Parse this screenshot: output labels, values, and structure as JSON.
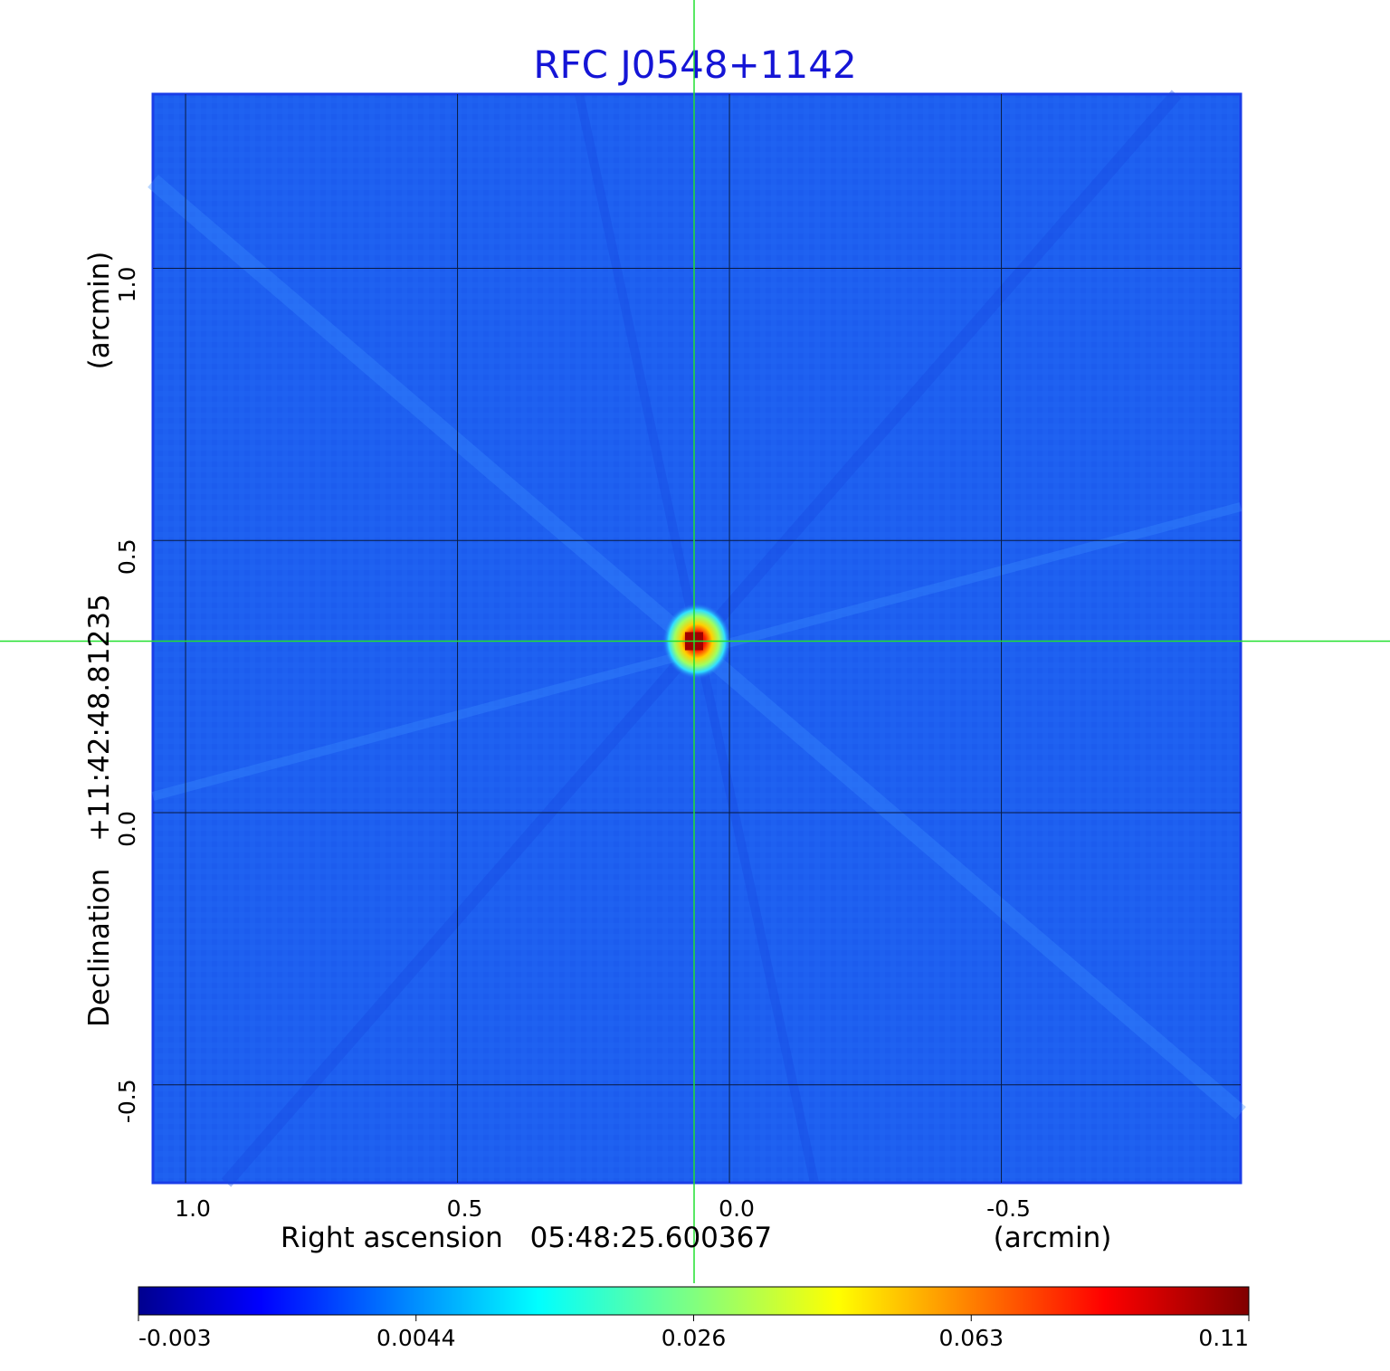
{
  "chart_data": {
    "type": "heatmap",
    "title": "RFC J0548+1142",
    "xlabel_prefix": "Right ascension",
    "x_center": "05:48:25.600367",
    "x_unit": "(arcmin)",
    "ylabel_prefix": "Declination",
    "y_center": "+11:42:48.81235",
    "y_unit": "(arcmin)",
    "xlim": [
      1.06,
      -0.94
    ],
    "ylim": [
      -0.68,
      1.32
    ],
    "x_ticks": [
      1.0,
      0.5,
      0.0,
      -0.5
    ],
    "x_tick_labels": [
      "1.0",
      "0.5",
      "0.0",
      "-0.5"
    ],
    "y_ticks": [
      1.0,
      0.5,
      0.0,
      -0.5
    ],
    "y_tick_labels": [
      "1.0",
      "0.5",
      "0.0",
      "-0.5"
    ],
    "grid": true,
    "crosshair": {
      "x": 0.065,
      "y": 0.315
    },
    "source_peak": {
      "x": 0.065,
      "y": 0.315,
      "flux": 0.11
    },
    "colorbar": {
      "tick_labels": [
        "-0.003",
        "0.0044",
        "0.026",
        "0.063",
        "0.11"
      ],
      "colormap": "jet",
      "min": -0.003,
      "max": 0.11
    },
    "colors": {
      "title": "#1515d6",
      "background_map": "#1e5ff0",
      "grid": "#0a1a40",
      "crosshair": "#22e030",
      "peak": "#c00000"
    }
  }
}
